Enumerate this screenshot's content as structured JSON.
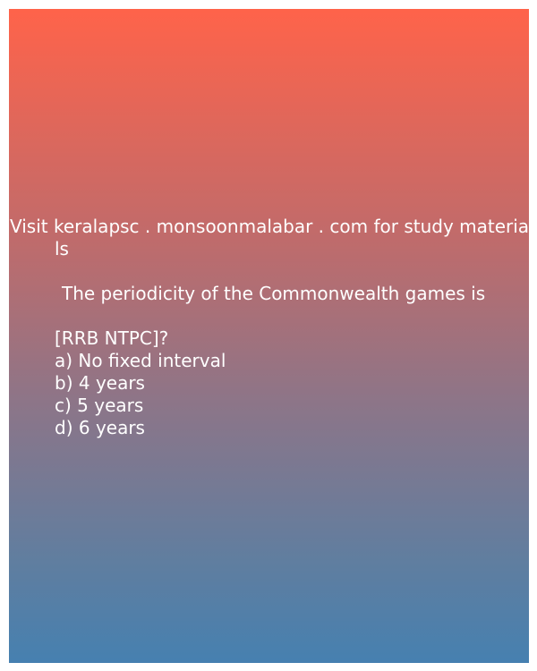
{
  "promo": {
    "line1": "Visit keralapsc . monsoonmalabar . com for study materia",
    "line2": "ls"
  },
  "question": {
    "text": "The periodicity of the Commonwealth games is",
    "source": "[RRB NTPC]?"
  },
  "options": [
    "a) No fixed interval",
    "b) 4 years",
    "c) 5 years",
    "d) 6 years"
  ],
  "colors": {
    "gradient_top": "#ff634a",
    "gradient_bottom": "#4680b0",
    "text": "#ffffff"
  }
}
